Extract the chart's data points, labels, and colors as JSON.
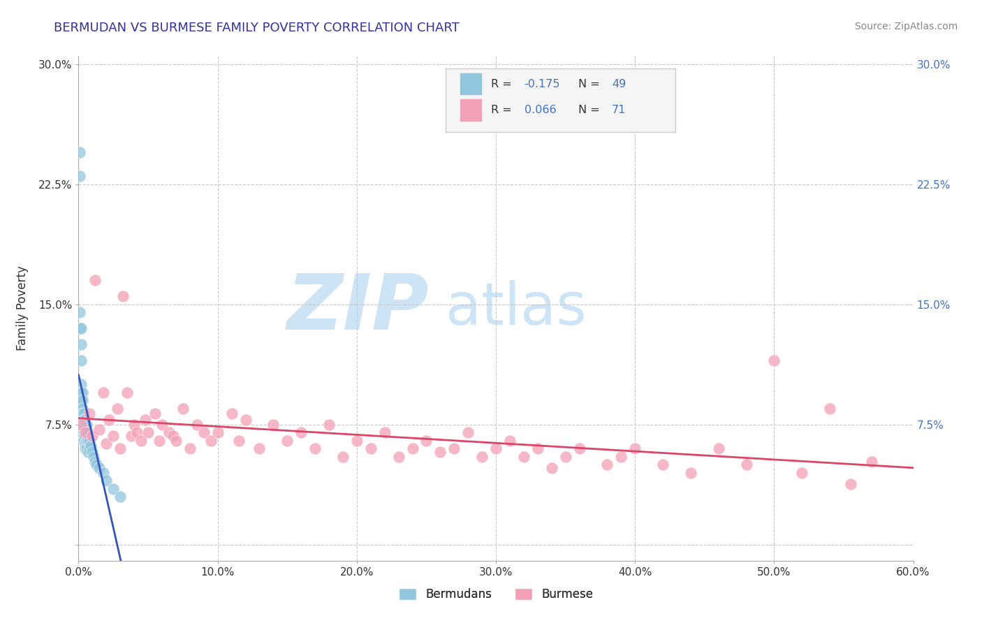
{
  "title": "BERMUDAN VS BURMESE FAMILY POVERTY CORRELATION CHART",
  "source": "Source: ZipAtlas.com",
  "ylabel": "Family Poverty",
  "xlim": [
    0.0,
    0.6
  ],
  "ylim": [
    -0.01,
    0.305
  ],
  "xticks": [
    0.0,
    0.1,
    0.2,
    0.3,
    0.4,
    0.5,
    0.6
  ],
  "xticklabels": [
    "0.0%",
    "10.0%",
    "20.0%",
    "30.0%",
    "40.0%",
    "50.0%",
    "60.0%"
  ],
  "yticks": [
    0.0,
    0.075,
    0.15,
    0.225,
    0.3
  ],
  "yticklabels_left": [
    "",
    "7.5%",
    "15.0%",
    "22.5%",
    "30.0%"
  ],
  "yticklabels_right": [
    "",
    "7.5%",
    "15.0%",
    "22.5%",
    "30.0%"
  ],
  "grid_color": "#c8c8c8",
  "bg_color": "#ffffff",
  "watermark_zip": "ZIP",
  "watermark_atlas": "atlas",
  "watermark_color": "#cce4f5",
  "legend_label1": "Bermudans",
  "legend_label2": "Burmese",
  "series1_color": "#92c5de",
  "series2_color": "#f4a0b8",
  "trend1_color": "#3355bb",
  "trend2_color": "#dd4466",
  "title_color": "#333399",
  "source_color": "#888888",
  "tick_color_left": "#333333",
  "tick_color_right": "#4472c4",
  "bermudan_x": [
    0.001,
    0.001,
    0.001,
    0.001,
    0.002,
    0.002,
    0.002,
    0.002,
    0.002,
    0.002,
    0.002,
    0.003,
    0.003,
    0.003,
    0.003,
    0.003,
    0.003,
    0.003,
    0.003,
    0.004,
    0.004,
    0.004,
    0.004,
    0.004,
    0.004,
    0.005,
    0.005,
    0.005,
    0.005,
    0.005,
    0.006,
    0.006,
    0.006,
    0.006,
    0.007,
    0.007,
    0.007,
    0.008,
    0.008,
    0.009,
    0.01,
    0.011,
    0.012,
    0.013,
    0.015,
    0.018,
    0.02,
    0.025,
    0.03
  ],
  "bermudan_y": [
    0.23,
    0.245,
    0.145,
    0.135,
    0.135,
    0.125,
    0.115,
    0.1,
    0.095,
    0.09,
    0.085,
    0.095,
    0.09,
    0.085,
    0.082,
    0.078,
    0.075,
    0.072,
    0.068,
    0.082,
    0.078,
    0.075,
    0.07,
    0.068,
    0.065,
    0.078,
    0.073,
    0.068,
    0.063,
    0.06,
    0.075,
    0.07,
    0.065,
    0.06,
    0.07,
    0.065,
    0.058,
    0.065,
    0.06,
    0.062,
    0.058,
    0.055,
    0.052,
    0.05,
    0.048,
    0.045,
    0.04,
    0.035,
    0.03
  ],
  "burmese_x": [
    0.002,
    0.005,
    0.008,
    0.01,
    0.012,
    0.015,
    0.018,
    0.02,
    0.022,
    0.025,
    0.028,
    0.03,
    0.032,
    0.035,
    0.038,
    0.04,
    0.042,
    0.045,
    0.048,
    0.05,
    0.055,
    0.058,
    0.06,
    0.065,
    0.068,
    0.07,
    0.075,
    0.08,
    0.085,
    0.09,
    0.095,
    0.1,
    0.11,
    0.115,
    0.12,
    0.13,
    0.14,
    0.15,
    0.16,
    0.17,
    0.18,
    0.19,
    0.2,
    0.21,
    0.22,
    0.23,
    0.24,
    0.25,
    0.26,
    0.27,
    0.28,
    0.29,
    0.3,
    0.31,
    0.32,
    0.33,
    0.34,
    0.35,
    0.36,
    0.38,
    0.39,
    0.4,
    0.42,
    0.44,
    0.46,
    0.48,
    0.5,
    0.52,
    0.54,
    0.555,
    0.57
  ],
  "burmese_y": [
    0.075,
    0.07,
    0.082,
    0.068,
    0.165,
    0.072,
    0.095,
    0.063,
    0.078,
    0.068,
    0.085,
    0.06,
    0.155,
    0.095,
    0.068,
    0.075,
    0.07,
    0.065,
    0.078,
    0.07,
    0.082,
    0.065,
    0.075,
    0.07,
    0.068,
    0.065,
    0.085,
    0.06,
    0.075,
    0.07,
    0.065,
    0.07,
    0.082,
    0.065,
    0.078,
    0.06,
    0.075,
    0.065,
    0.07,
    0.06,
    0.075,
    0.055,
    0.065,
    0.06,
    0.07,
    0.055,
    0.06,
    0.065,
    0.058,
    0.06,
    0.07,
    0.055,
    0.06,
    0.065,
    0.055,
    0.06,
    0.048,
    0.055,
    0.06,
    0.05,
    0.055,
    0.06,
    0.05,
    0.045,
    0.06,
    0.05,
    0.115,
    0.045,
    0.085,
    0.038,
    0.052
  ]
}
